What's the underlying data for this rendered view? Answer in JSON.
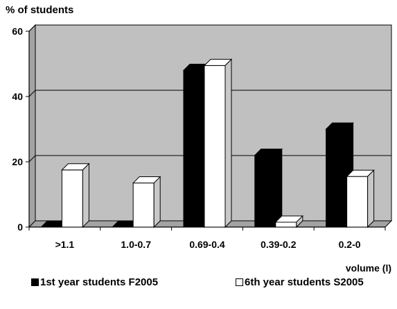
{
  "chart_data": {
    "type": "bar",
    "title": "",
    "ylabel": "% of students",
    "xlabel": "volume (l)",
    "ylim": [
      0,
      60
    ],
    "yticks": [
      0,
      20,
      40,
      60
    ],
    "grid": true,
    "style": "3d",
    "categories": [
      ">1.1",
      "1.0-0.7",
      "0.69-0.4",
      "0.39-0.2",
      "0.2-0"
    ],
    "series": [
      {
        "name": "1st year students F2005",
        "color": "#000000",
        "values": [
          0,
          0,
          48,
          22,
          30
        ]
      },
      {
        "name": "6th year students S2005",
        "color": "#ffffff",
        "values": [
          17.5,
          13.5,
          49.5,
          1.5,
          15.5
        ]
      }
    ],
    "legend_position": "bottom",
    "colors": {
      "plot_back": "#c0c0c0",
      "side_wall": "#a3a3a3",
      "floor": "#a3a3a3"
    }
  }
}
